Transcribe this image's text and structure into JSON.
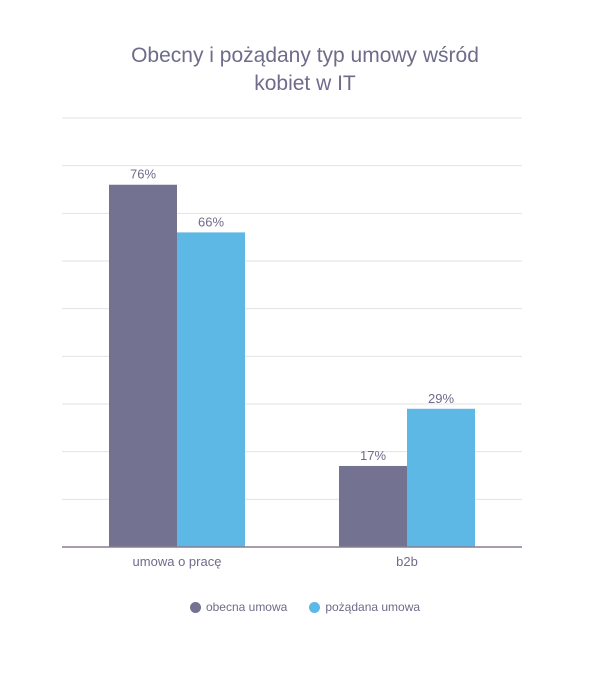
{
  "chart_data": {
    "type": "bar",
    "title_lines": [
      "Obecny i pożądany typ umowy wśród",
      "kobiet w IT"
    ],
    "categories": [
      "umowa o pracę",
      "b2b"
    ],
    "series": [
      {
        "name": "obecna umowa",
        "values": [
          76,
          17
        ],
        "labels": [
          "76%",
          "17%"
        ],
        "color": "#737291"
      },
      {
        "name": "pożądana umowa",
        "values": [
          66,
          29
        ],
        "labels": [
          "66%",
          "29%"
        ],
        "color": "#5db8e6"
      }
    ],
    "ylim": [
      0,
      90
    ],
    "grid": true,
    "legend_position": "bottom",
    "colors": {
      "text": "#6e6c8a",
      "grid": "#e2e2e2",
      "axis": "#8a7f8f"
    }
  }
}
